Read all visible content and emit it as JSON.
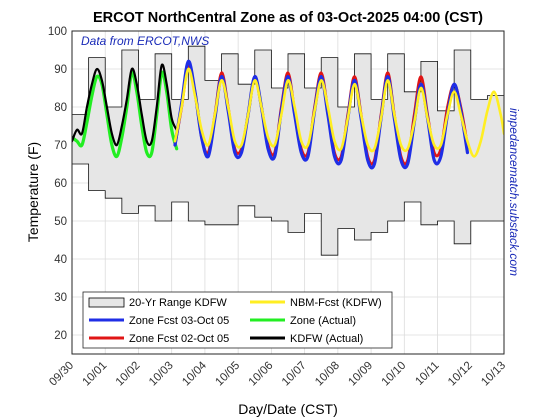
{
  "chart_data": {
    "type": "line",
    "title": "ERCOT NorthCentral Zone as of 03-Oct-2025 04:00 (CST)",
    "xlabel": "Day/Date (CST)",
    "ylabel": "Temperature (F)",
    "annotation": "Data from ERCOT,NWS",
    "side_note": "impedancematch.substack.com",
    "xlim": [
      0,
      13
    ],
    "ylim": [
      15,
      100
    ],
    "x_ticks": [
      "09/30",
      "10/01",
      "10/02",
      "10/03",
      "10/04",
      "10/05",
      "10/06",
      "10/07",
      "10/08",
      "10/09",
      "10/10",
      "10/11",
      "10/12",
      "10/13"
    ],
    "y_ticks": [
      20,
      30,
      40,
      50,
      60,
      70,
      80,
      90,
      100
    ],
    "grid": true,
    "legend_position": "bottom-left",
    "legend": {
      "range": "20-Yr Range KDFW",
      "zone_fcst_03": "Zone Fcst 03-Oct 05",
      "zone_fcst_02": "Zone Fcst 02-Oct 05",
      "nbm": "NBM-Fcst (KDFW)",
      "zone_actual": "Zone (Actual)",
      "kdfw_actual": "KDFW (Actual)"
    },
    "colors": {
      "range_fill": "#e6e6e6",
      "zone_fcst_03": "#1f2ee6",
      "zone_fcst_02": "#e01515",
      "nbm": "#ffee22",
      "zone_actual": "#22ee22",
      "kdfw_actual": "#000000"
    },
    "range_band": {
      "x": [
        0.0,
        0.5,
        1.0,
        1.5,
        2.0,
        2.5,
        3.0,
        3.5,
        4.0,
        4.5,
        5.0,
        5.5,
        6.0,
        6.5,
        7.0,
        7.5,
        8.0,
        8.5,
        9.0,
        9.5,
        10.0,
        10.5,
        11.0,
        11.5,
        12.0,
        12.5,
        13.0
      ],
      "upper": [
        78,
        93,
        80,
        95,
        82,
        94,
        82,
        96,
        87,
        94,
        86,
        95,
        85,
        94,
        85,
        93,
        80,
        94,
        82,
        94,
        84,
        92,
        79,
        95,
        82,
        83,
        83
      ],
      "lower": [
        60,
        65,
        58,
        56,
        52,
        54,
        50,
        55,
        50,
        49,
        49,
        54,
        51,
        50,
        47,
        52,
        41,
        48,
        45,
        47,
        50,
        55,
        49,
        50,
        44,
        50,
        50
      ]
    },
    "series": [
      {
        "key": "zone_actual",
        "x": [
          0.0,
          0.15,
          0.3,
          0.45,
          0.6,
          0.75,
          0.9,
          1.05,
          1.2,
          1.35,
          1.5,
          1.65,
          1.8,
          1.95,
          2.1,
          2.25,
          2.4,
          2.55,
          2.7,
          2.85,
          3.0,
          3.15
        ],
        "values": [
          72,
          71,
          70,
          76,
          83,
          88,
          86,
          78,
          70,
          67,
          72,
          80,
          89,
          84,
          75,
          68,
          68,
          78,
          89,
          84,
          74,
          69
        ]
      },
      {
        "key": "kdfw_actual",
        "x": [
          0.0,
          0.15,
          0.3,
          0.45,
          0.6,
          0.75,
          0.9,
          1.05,
          1.2,
          1.35,
          1.5,
          1.65,
          1.8,
          1.95,
          2.1,
          2.25,
          2.4,
          2.55,
          2.7,
          2.85,
          3.0,
          3.15
        ],
        "values": [
          71,
          74,
          73,
          80,
          86,
          90,
          87,
          80,
          73,
          70,
          75,
          82,
          90,
          86,
          78,
          71,
          71,
          80,
          91,
          86,
          77,
          74
        ]
      },
      {
        "key": "zone_fcst_02",
        "x": [
          3.1,
          3.3,
          3.5,
          3.7,
          3.9,
          4.1,
          4.3,
          4.5,
          4.7,
          4.9,
          5.1,
          5.3,
          5.5,
          5.7,
          5.9,
          6.1,
          6.3,
          6.5,
          6.7,
          6.9,
          7.1,
          7.3,
          7.5,
          7.7,
          7.9,
          8.1,
          8.3,
          8.5,
          8.7,
          8.9,
          9.1,
          9.3,
          9.5,
          9.7,
          9.9,
          10.1,
          10.3,
          10.5,
          10.7,
          10.9,
          11.1,
          11.3,
          11.5,
          11.7,
          11.9
        ],
        "values": [
          70,
          80,
          91,
          84,
          72,
          68,
          78,
          89,
          80,
          69,
          69,
          78,
          88,
          80,
          70,
          68,
          80,
          89,
          79,
          69,
          68,
          80,
          89,
          79,
          68,
          67,
          78,
          88,
          78,
          67,
          66,
          78,
          89,
          78,
          67,
          66,
          78,
          88,
          78,
          68,
          69,
          80,
          86,
          80,
          70
        ]
      },
      {
        "key": "zone_fcst_03",
        "x": [
          3.1,
          3.3,
          3.5,
          3.7,
          3.9,
          4.1,
          4.3,
          4.5,
          4.7,
          4.9,
          5.1,
          5.3,
          5.5,
          5.7,
          5.9,
          6.1,
          6.3,
          6.5,
          6.7,
          6.9,
          7.1,
          7.3,
          7.5,
          7.7,
          7.9,
          8.1,
          8.3,
          8.5,
          8.7,
          8.9,
          9.1,
          9.3,
          9.5,
          9.7,
          9.9,
          10.1,
          10.3,
          10.5,
          10.7,
          10.9,
          11.1,
          11.3,
          11.5,
          11.7,
          11.9
        ],
        "values": [
          70,
          81,
          92,
          84,
          72,
          67,
          77,
          88,
          79,
          68,
          68,
          78,
          88,
          80,
          69,
          67,
          79,
          88,
          78,
          68,
          67,
          79,
          88,
          78,
          67,
          66,
          77,
          87,
          77,
          66,
          65,
          77,
          88,
          77,
          66,
          65,
          76,
          86,
          77,
          66,
          67,
          78,
          86,
          79,
          68
        ]
      },
      {
        "key": "nbm",
        "x": [
          3.1,
          3.3,
          3.5,
          3.7,
          3.9,
          4.1,
          4.3,
          4.5,
          4.7,
          4.9,
          5.1,
          5.3,
          5.5,
          5.7,
          5.9,
          6.1,
          6.3,
          6.5,
          6.7,
          6.9,
          7.1,
          7.3,
          7.5,
          7.7,
          7.9,
          8.1,
          8.3,
          8.5,
          8.7,
          8.9,
          9.1,
          9.3,
          9.5,
          9.7,
          9.9,
          10.1,
          10.3,
          10.5,
          10.7,
          10.9,
          11.1,
          11.3,
          11.5,
          11.7,
          11.9,
          12.1,
          12.3,
          12.5,
          12.7,
          12.9,
          13.0
        ],
        "values": [
          71,
          80,
          90,
          83,
          74,
          70,
          78,
          87,
          80,
          71,
          70,
          78,
          87,
          80,
          72,
          70,
          78,
          87,
          80,
          71,
          70,
          79,
          87,
          80,
          71,
          69,
          77,
          86,
          78,
          70,
          69,
          77,
          87,
          78,
          70,
          69,
          76,
          85,
          77,
          70,
          70,
          78,
          84,
          78,
          71,
          67,
          71,
          79,
          84,
          78,
          73
        ]
      }
    ]
  }
}
